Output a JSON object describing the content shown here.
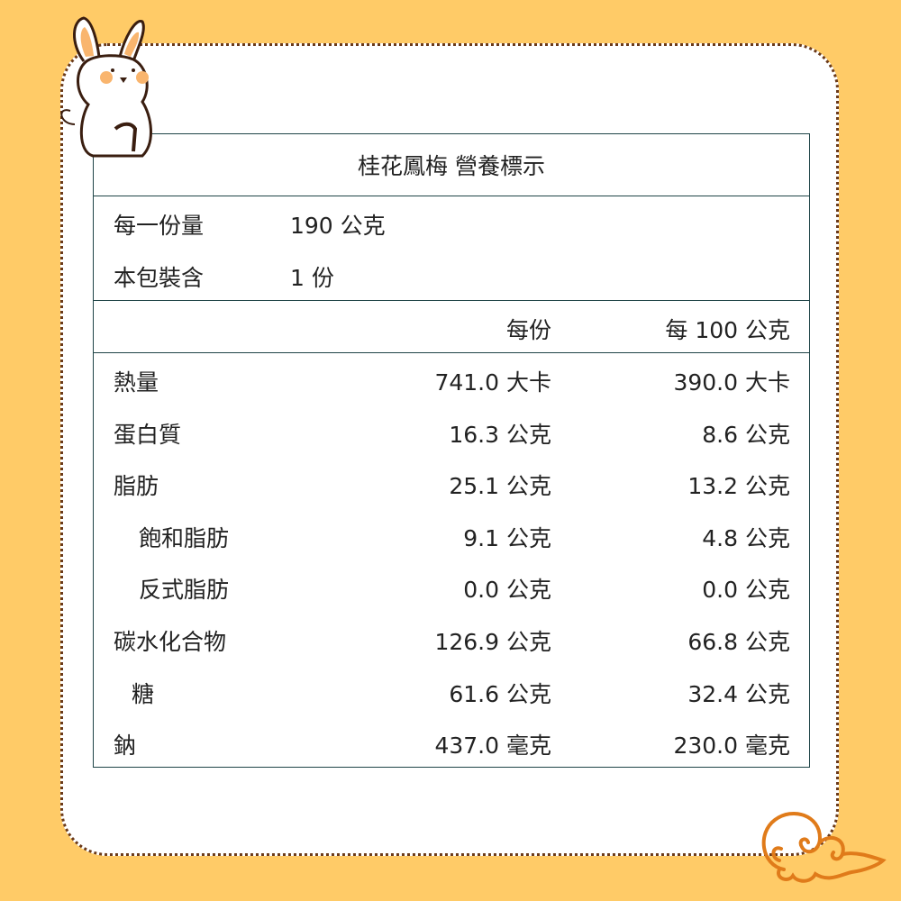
{
  "title": "桂花鳳梅 營養標示",
  "serving": [
    {
      "label": "每一份量",
      "value": "190 公克"
    },
    {
      "label": "本包裝含",
      "value": "1 份"
    }
  ],
  "header": {
    "per_serving": "每份",
    "per_100g": "每 100 公克"
  },
  "rows": [
    {
      "label": "熱量",
      "indent": 0,
      "per_serving": "741.0 大卡",
      "per_100g": "390.0 大卡"
    },
    {
      "label": "蛋白質",
      "indent": 0,
      "per_serving": "16.3 公克",
      "per_100g": "8.6 公克"
    },
    {
      "label": "脂肪",
      "indent": 0,
      "per_serving": "25.1 公克",
      "per_100g": "13.2 公克"
    },
    {
      "label": "飽和脂肪",
      "indent": 2,
      "per_serving": "9.1 公克",
      "per_100g": "4.8 公克"
    },
    {
      "label": "反式脂肪",
      "indent": 2,
      "per_serving": "0.0 公克",
      "per_100g": "0.0 公克"
    },
    {
      "label": "碳水化合物",
      "indent": 0,
      "per_serving": "126.9 公克",
      "per_100g": "66.8 公克"
    },
    {
      "label": "糖",
      "indent": 1,
      "per_serving": "61.6 公克",
      "per_100g": "32.4 公克"
    },
    {
      "label": "鈉",
      "indent": 0,
      "per_serving": "437.0 毫克",
      "per_100g": "230.0 毫克"
    }
  ],
  "colors": {
    "background": "#FFCB67",
    "border": "#1f4447",
    "dots": "#6b3a1a",
    "cloud": "#E07B1A"
  },
  "decorations": [
    "rabbit-illustration",
    "cloud-icon"
  ]
}
